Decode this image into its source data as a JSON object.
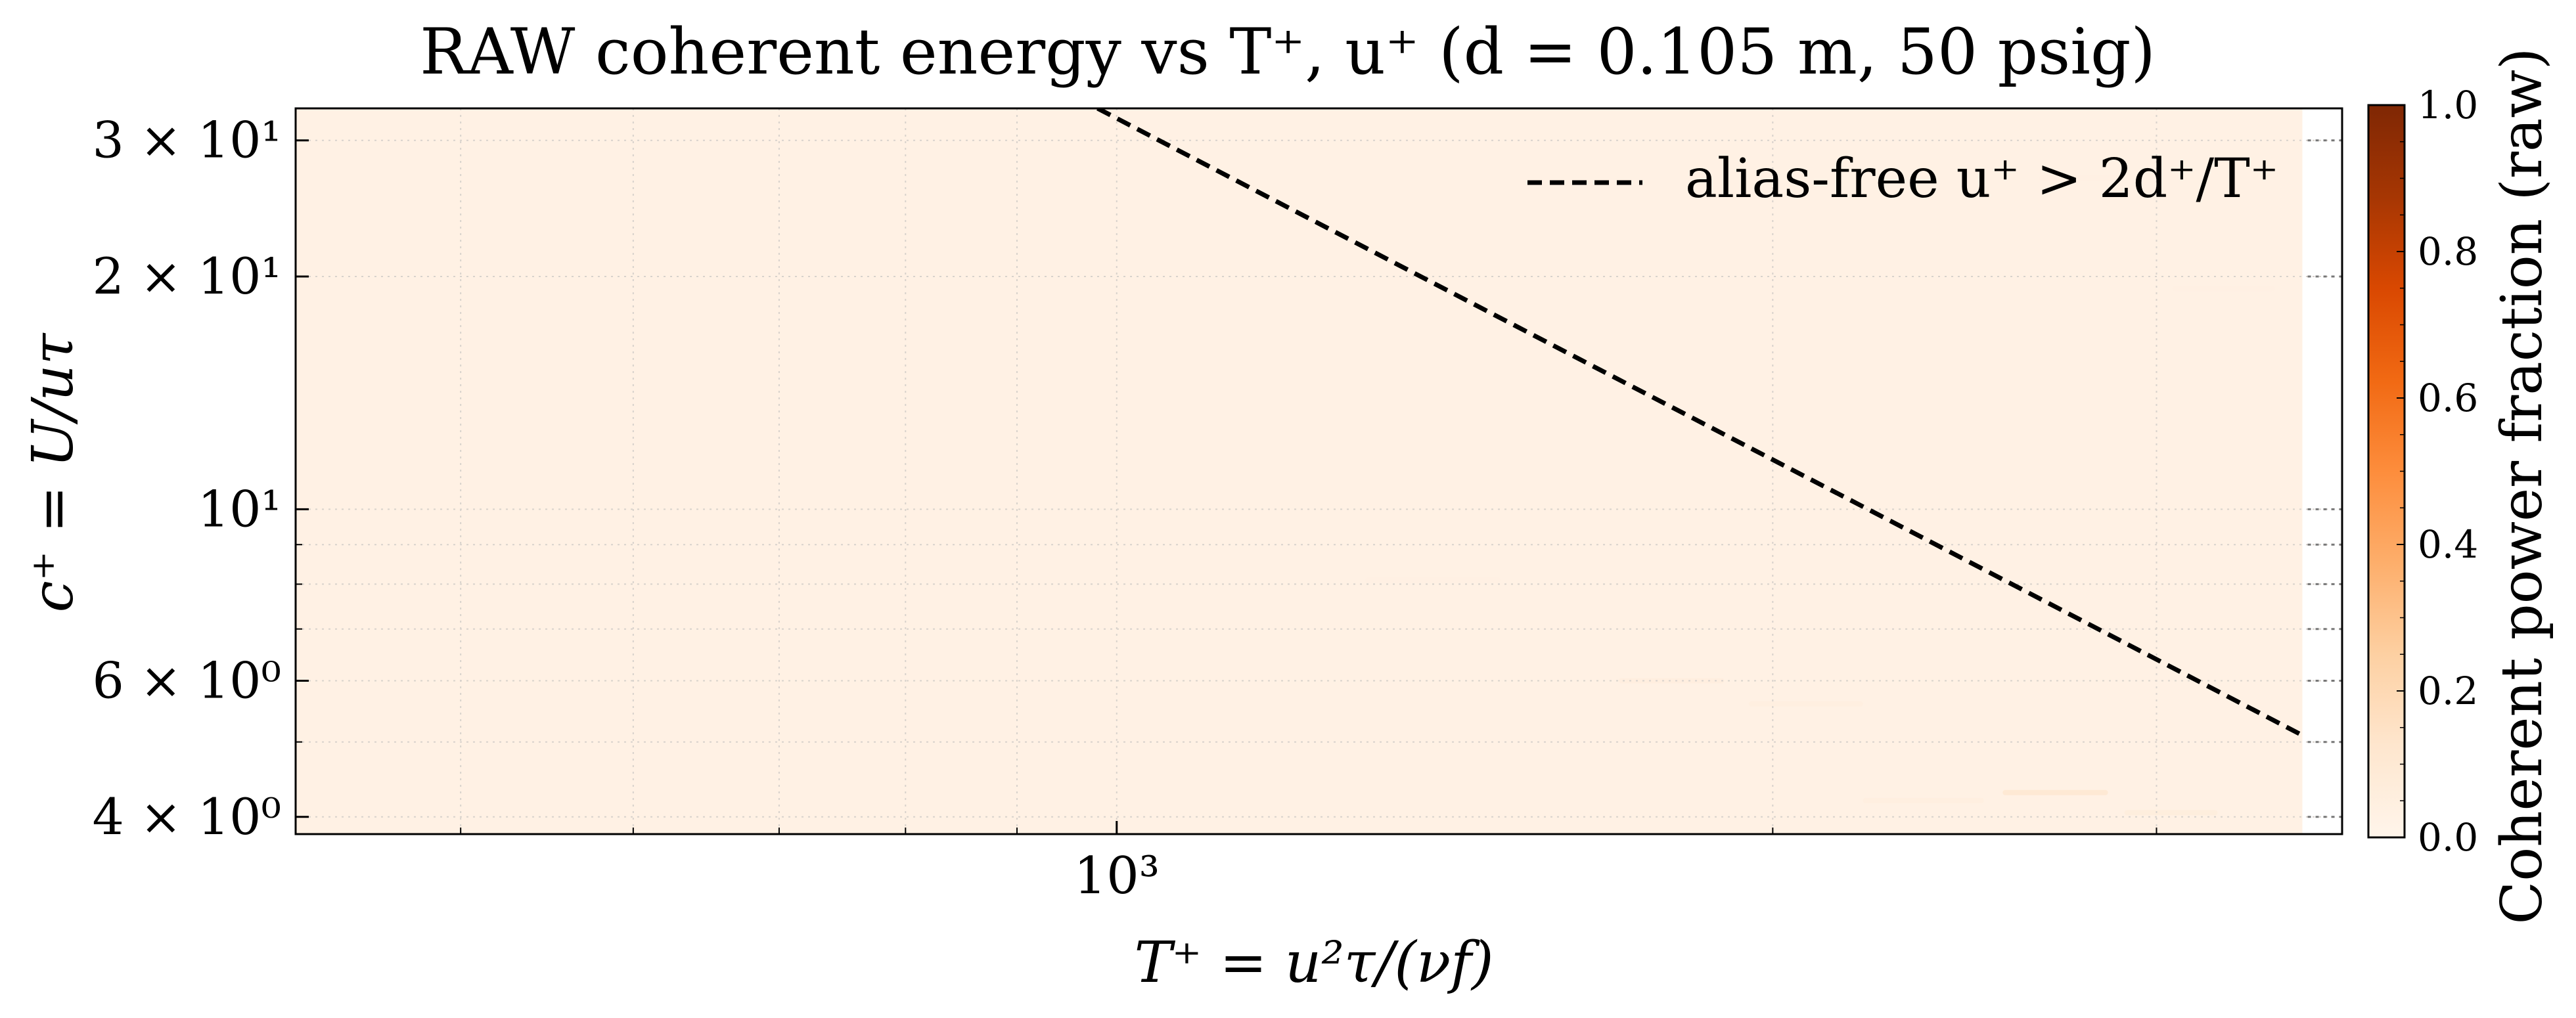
{
  "chart_data": {
    "type": "heatmap",
    "title": "RAW coherent energy vs T⁺, u⁺ (d = 0.105 m, 50 psig)",
    "xlabel": "T⁺ = u²τ/(νf)",
    "ylabel": "c⁺ = U/uτ",
    "x_scale": "log",
    "y_scale": "log",
    "xlim": [
      420,
      3650
    ],
    "ylim": [
      3.8,
      33
    ],
    "x_ticks": [
      {
        "value": 1000,
        "label": "10³"
      }
    ],
    "y_ticks": [
      {
        "value": 4,
        "label": "4 × 10⁰"
      },
      {
        "value": 6,
        "label": "6 × 10⁰"
      },
      {
        "value": 10,
        "label": "10¹"
      },
      {
        "value": 20,
        "label": "2 × 10¹"
      },
      {
        "value": 30,
        "label": "3 × 10¹"
      }
    ],
    "y_minor_ticks": [
      5,
      7,
      8,
      9
    ],
    "grid": true,
    "heatmap_extent_x": [
      420,
      3500
    ],
    "heatmap_fill": 0.03,
    "heatmap_traces": [
      {
        "x0": 1700,
        "x1": 1900,
        "y": 6.0,
        "value": 0.06
      },
      {
        "x0": 1950,
        "x1": 2200,
        "y": 5.6,
        "value": 0.05
      },
      {
        "x0": 2550,
        "x1": 2850,
        "y": 4.3,
        "value": 0.12
      },
      {
        "x0": 2200,
        "x1": 2500,
        "y": 4.2,
        "value": 0.05
      },
      {
        "x0": 2900,
        "x1": 3200,
        "y": 4.05,
        "value": 0.07
      },
      {
        "x0": 1300,
        "x1": 1500,
        "y": 8.1,
        "value": 0.04
      },
      {
        "x0": 2650,
        "x1": 2900,
        "y": 26.8,
        "value": 0.04
      },
      {
        "x0": 2150,
        "x1": 2350,
        "y": 19.2,
        "value": 0.03
      },
      {
        "x0": 3050,
        "x1": 3400,
        "y": 19.3,
        "value": 0.04
      }
    ],
    "alias_line": {
      "label": "alias-free u⁺ > 2d⁺/T⁺",
      "points": [
        [
          980,
          33
        ],
        [
          3500,
          5.1
        ]
      ]
    },
    "legend_position": "top-right",
    "colorbar": {
      "label": "Coherent power fraction (raw)",
      "min": 0.0,
      "max": 1.0,
      "ticks": [
        {
          "value": 0.0,
          "label": "0.0"
        },
        {
          "value": 0.2,
          "label": "0.2"
        },
        {
          "value": 0.4,
          "label": "0.4"
        },
        {
          "value": 0.6,
          "label": "0.6"
        },
        {
          "value": 0.8,
          "label": "0.8"
        },
        {
          "value": 1.0,
          "label": "1.0"
        }
      ]
    },
    "colormap": [
      "#fff5eb",
      "#fee6ce",
      "#fdd0a2",
      "#fdae6b",
      "#fd8d3c",
      "#f16913",
      "#d94801",
      "#a63603",
      "#7f2704"
    ]
  }
}
